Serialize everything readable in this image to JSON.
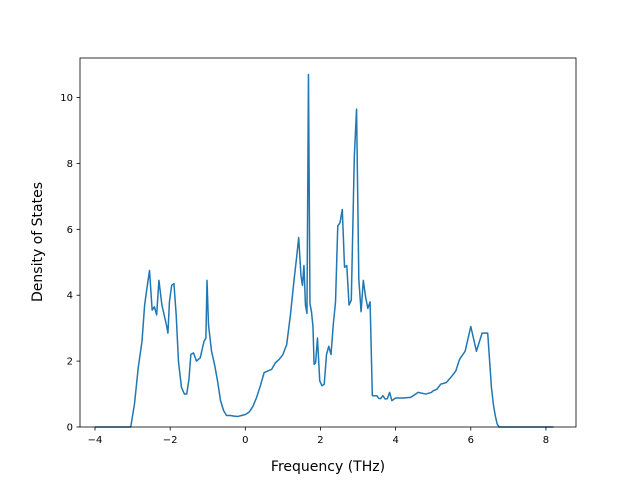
{
  "chart_data": {
    "type": "line",
    "title": "",
    "xlabel": "Frequency (THz)",
    "ylabel": "Density of States",
    "xlim": [
      -4.4,
      8.8
    ],
    "ylim": [
      0,
      11.2
    ],
    "xticks": [
      -4,
      -2,
      0,
      2,
      4,
      6,
      8
    ],
    "xtick_labels": [
      "−4",
      "−2",
      "0",
      "2",
      "4",
      "6",
      "8"
    ],
    "yticks": [
      0,
      2,
      4,
      6,
      8,
      10
    ],
    "ytick_labels": [
      "0",
      "2",
      "4",
      "6",
      "8",
      "10"
    ],
    "grid": false,
    "legend": "none",
    "series": [
      {
        "color": "#1f77b4",
        "x": [
          -4.0,
          -3.5,
          -3.05,
          -2.95,
          -2.85,
          -2.75,
          -2.68,
          -2.62,
          -2.55,
          -2.48,
          -2.42,
          -2.36,
          -2.3,
          -2.22,
          -2.16,
          -2.1,
          -2.06,
          -2.02,
          -1.96,
          -1.9,
          -1.84,
          -1.78,
          -1.7,
          -1.62,
          -1.56,
          -1.5,
          -1.45,
          -1.38,
          -1.3,
          -1.2,
          -1.1,
          -1.05,
          -1.02,
          -0.98,
          -0.9,
          -0.82,
          -0.74,
          -0.66,
          -0.58,
          -0.5,
          -0.4,
          -0.3,
          -0.2,
          -0.1,
          0.0,
          0.1,
          0.2,
          0.3,
          0.4,
          0.5,
          0.6,
          0.7,
          0.8,
          0.9,
          1.0,
          1.1,
          1.2,
          1.3,
          1.36,
          1.42,
          1.48,
          1.52,
          1.56,
          1.6,
          1.64,
          1.68,
          1.72,
          1.76,
          1.8,
          1.83,
          1.87,
          1.92,
          1.98,
          2.04,
          2.1,
          2.16,
          2.22,
          2.28,
          2.34,
          2.4,
          2.46,
          2.52,
          2.58,
          2.64,
          2.7,
          2.76,
          2.82,
          2.9,
          2.96,
          3.02,
          3.08,
          3.14,
          3.2,
          3.26,
          3.32,
          3.38,
          3.44,
          3.5,
          3.55,
          3.6,
          3.66,
          3.72,
          3.78,
          3.84,
          3.9,
          4.0,
          4.2,
          4.4,
          4.6,
          4.8,
          4.95,
          5.0,
          5.05,
          5.1,
          5.2,
          5.35,
          5.5,
          5.6,
          5.7,
          5.85,
          6.0,
          6.15,
          6.3,
          6.45,
          6.55,
          6.6,
          6.65,
          6.7,
          6.75,
          6.8,
          6.85,
          6.9,
          6.95,
          7.0,
          7.05,
          7.1,
          7.2,
          7.4,
          7.8,
          8.2
        ],
        "y": [
          0.0,
          0.0,
          0.0,
          0.7,
          1.8,
          2.6,
          3.7,
          4.2,
          4.75,
          3.55,
          3.65,
          3.4,
          4.45,
          3.7,
          3.4,
          3.1,
          2.85,
          3.8,
          4.3,
          4.35,
          3.4,
          2.0,
          1.2,
          1.0,
          1.0,
          1.45,
          2.2,
          2.25,
          2.0,
          2.1,
          2.6,
          2.7,
          4.45,
          3.1,
          2.3,
          1.9,
          1.4,
          0.8,
          0.5,
          0.35,
          0.35,
          0.33,
          0.32,
          0.35,
          0.38,
          0.45,
          0.62,
          0.9,
          1.25,
          1.65,
          1.7,
          1.75,
          1.95,
          2.05,
          2.2,
          2.5,
          3.4,
          4.5,
          5.1,
          5.75,
          4.6,
          4.3,
          4.9,
          3.7,
          3.45,
          10.7,
          3.75,
          3.5,
          3.05,
          1.9,
          1.95,
          2.7,
          1.4,
          1.25,
          1.3,
          2.2,
          2.45,
          2.2,
          3.1,
          3.8,
          6.1,
          6.2,
          6.6,
          4.85,
          4.9,
          3.7,
          3.85,
          8.2,
          9.65,
          4.5,
          3.5,
          4.45,
          3.95,
          3.6,
          3.8,
          0.95,
          0.95,
          0.95,
          0.87,
          0.86,
          0.95,
          0.85,
          0.86,
          1.05,
          0.8,
          0.88,
          0.88,
          0.9,
          1.05,
          1.0,
          1.05,
          1.1,
          1.12,
          1.15,
          1.3,
          1.35,
          1.55,
          1.7,
          2.05,
          2.3,
          3.05,
          2.3,
          2.85,
          2.85,
          1.2,
          0.7,
          0.35,
          0.1,
          0.0,
          0.0,
          0.0,
          0.0,
          0.0,
          0.0,
          0.0,
          0.0,
          0.0,
          0.0,
          0.0,
          0.0
        ]
      }
    ]
  }
}
